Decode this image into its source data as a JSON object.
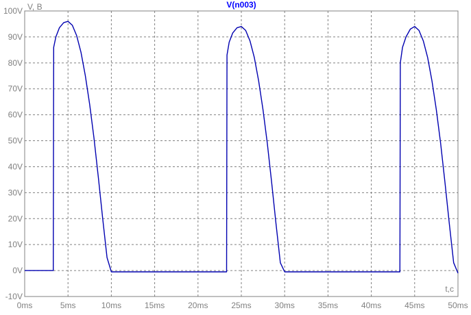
{
  "chart_data": {
    "type": "line",
    "title": "V(n003)",
    "ylabel": "V, B",
    "xlabel": "t,c",
    "xlim": [
      0,
      50
    ],
    "ylim": [
      -10,
      100
    ],
    "grid": true,
    "x_ticks": [
      0,
      5,
      10,
      15,
      20,
      25,
      30,
      35,
      40,
      45,
      50
    ],
    "x_tick_labels": [
      "0ms",
      "5ms",
      "10ms",
      "15ms",
      "20ms",
      "25ms",
      "30ms",
      "35ms",
      "40ms",
      "45ms",
      "50ms"
    ],
    "y_ticks": [
      -10,
      0,
      10,
      20,
      30,
      40,
      50,
      60,
      70,
      80,
      90,
      100
    ],
    "y_tick_labels": [
      "-10V",
      "0V",
      "10V",
      "20V",
      "30V",
      "40V",
      "50V",
      "60V",
      "70V",
      "80V",
      "90V",
      "100V"
    ],
    "series": [
      {
        "name": "V(n003)",
        "color": "#0000b0",
        "x": [
          0,
          3.3,
          3.35,
          3.6,
          4.0,
          4.5,
          5.0,
          5.5,
          6.0,
          6.5,
          7.0,
          7.5,
          8.0,
          8.5,
          9.0,
          9.5,
          10.0,
          10.1,
          15,
          20,
          23.3,
          23.35,
          23.6,
          24.0,
          24.5,
          25.0,
          25.5,
          26.0,
          26.5,
          27.0,
          27.5,
          28.0,
          28.5,
          29.0,
          29.5,
          30.0,
          30.1,
          35,
          40,
          43.3,
          43.35,
          43.6,
          44.0,
          44.5,
          45.0,
          45.5,
          46.0,
          46.5,
          47.0,
          47.5,
          48.0,
          48.5,
          49.0,
          49.5,
          50.0
        ],
        "y": [
          0,
          0,
          86,
          90,
          93.5,
          95.5,
          96,
          94.5,
          90.5,
          84,
          75,
          64,
          51,
          36,
          20,
          5,
          -0.5,
          -0.5,
          -0.5,
          -0.5,
          -0.5,
          83,
          88,
          91.5,
          93.5,
          94,
          92.5,
          88.5,
          82,
          73,
          62,
          49,
          34,
          18,
          3,
          -0.5,
          -0.5,
          -0.5,
          -0.5,
          -0.5,
          80,
          86,
          90,
          93,
          94,
          92.5,
          88.5,
          82,
          73,
          62,
          49,
          34,
          18,
          3,
          -1
        ]
      }
    ]
  }
}
